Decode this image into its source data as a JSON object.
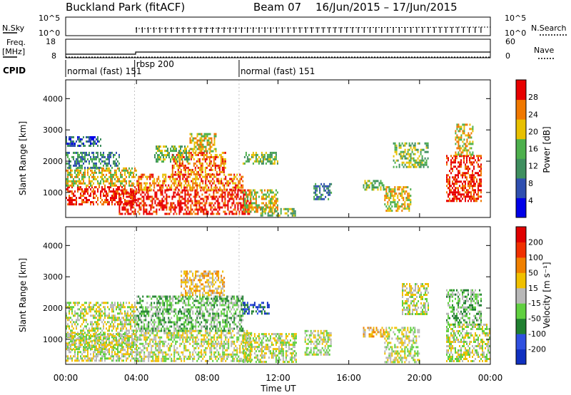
{
  "header": {
    "station": "Buckland Park (fitACF)",
    "beam": "Beam 07",
    "date_range": "16/Jun/2015 – 17/Jun/2015"
  },
  "panels": {
    "nsky_label": "N.Sky",
    "nsearch_label": "N.Search",
    "freq_label_1": "Freq.",
    "freq_label_2": "[MHz]",
    "nave_label": "Nave",
    "cpid_label": "CPID",
    "left_axis_top": "10^5",
    "left_axis_bottom": "10^0",
    "right_axis_top": "10^5",
    "right_axis_bottom": "10^0",
    "freq_top": "18",
    "freq_bottom": "8",
    "nave_top": "60",
    "nave_bottom": "0",
    "cpid_segments": [
      {
        "label": "normal (fast) 151",
        "start_hour": 0,
        "end_hour": 3.9
      },
      {
        "label": "rbsp 200",
        "start_hour": 3.9,
        "end_hour": 9.8
      },
      {
        "label": "normal (fast) 151",
        "start_hour": 9.8,
        "end_hour": 24
      }
    ]
  },
  "chart_data": [
    {
      "type": "heatmap",
      "ylabel": "Slant Range [km]",
      "yticks": [
        "1000",
        "2000",
        "3000",
        "4000"
      ],
      "ylim": [
        200,
        4600
      ],
      "xlim": [
        0,
        24
      ],
      "colorbar_label": "Power [dB]",
      "colorbar_ticks": [
        "4",
        "8",
        "12",
        "16",
        "20",
        "24",
        "28"
      ],
      "colorbar_colors": [
        "#0000e8",
        "#2f4fb0",
        "#3f8f5f",
        "#4db04d",
        "#e8c000",
        "#f07800",
        "#e80000"
      ],
      "echo_regions": [
        {
          "start_hour": 0.0,
          "end_hour": 4.0,
          "min_km": 650,
          "max_km": 1200,
          "level": 6
        },
        {
          "start_hour": 0.0,
          "end_hour": 4.0,
          "min_km": 1200,
          "max_km": 1800,
          "level": 4
        },
        {
          "start_hour": 0.0,
          "end_hour": 3.0,
          "min_km": 1800,
          "max_km": 2300,
          "level": 2
        },
        {
          "start_hour": 0.0,
          "end_hour": 2.0,
          "min_km": 2500,
          "max_km": 2800,
          "level": 1
        },
        {
          "start_hour": 3.0,
          "end_hour": 10.5,
          "min_km": 300,
          "max_km": 1100,
          "level": 6
        },
        {
          "start_hour": 4.0,
          "end_hour": 10.0,
          "min_km": 1100,
          "max_km": 1600,
          "level": 5
        },
        {
          "start_hour": 6.0,
          "end_hour": 9.0,
          "min_km": 1600,
          "max_km": 2300,
          "level": 5
        },
        {
          "start_hour": 7.0,
          "end_hour": 8.5,
          "min_km": 2300,
          "max_km": 2900,
          "level": 4
        },
        {
          "start_hour": 5.0,
          "end_hour": 7.0,
          "min_km": 2000,
          "max_km": 2500,
          "level": 3
        },
        {
          "start_hour": 10.0,
          "end_hour": 12.0,
          "min_km": 400,
          "max_km": 1100,
          "level": 4
        },
        {
          "start_hour": 10.0,
          "end_hour": 12.0,
          "min_km": 1900,
          "max_km": 2300,
          "level": 3
        },
        {
          "start_hour": 11.0,
          "end_hour": 13.0,
          "min_km": 250,
          "max_km": 500,
          "level": 3
        },
        {
          "start_hour": 14.0,
          "end_hour": 15.0,
          "min_km": 800,
          "max_km": 1300,
          "level": 2
        },
        {
          "start_hour": 16.8,
          "end_hour": 18.0,
          "min_km": 1100,
          "max_km": 1400,
          "level": 3
        },
        {
          "start_hour": 18.0,
          "end_hour": 19.5,
          "min_km": 400,
          "max_km": 1200,
          "level": 4
        },
        {
          "start_hour": 18.5,
          "end_hour": 20.5,
          "min_km": 1800,
          "max_km": 2600,
          "level": 3
        },
        {
          "start_hour": 21.5,
          "end_hour": 23.5,
          "min_km": 700,
          "max_km": 2200,
          "level": 6
        },
        {
          "start_hour": 22.0,
          "end_hour": 23.0,
          "min_km": 2200,
          "max_km": 3200,
          "level": 4
        }
      ]
    },
    {
      "type": "heatmap",
      "ylabel": "Slant Range [km]",
      "yticks": [
        "1000",
        "2000",
        "3000",
        "4000"
      ],
      "ylim": [
        200,
        4600
      ],
      "xlim": [
        0,
        24
      ],
      "xlabel": "Time UT",
      "xticks": [
        "00:00",
        "04:00",
        "08:00",
        "12:00",
        "16:00",
        "20:00",
        "00:00"
      ],
      "colorbar_label": "Velocity [m s⁻¹]",
      "colorbar_ticks": [
        "200",
        "100",
        "50",
        "15",
        "-15",
        "-50",
        "-100",
        "-200"
      ],
      "colorbar_colors": [
        "#1030c0",
        "#3050e0",
        "#208030",
        "#60d040",
        "#b8b8b8",
        "#f0c000",
        "#f08000",
        "#f03000",
        "#e00000"
      ],
      "echo_regions": [
        {
          "start_hour": 0.0,
          "end_hour": 4.0,
          "min_km": 300,
          "max_km": 2200,
          "level": 4
        },
        {
          "start_hour": 0.0,
          "end_hour": 4.0,
          "min_km": 700,
          "max_km": 1200,
          "level": 4
        },
        {
          "start_hour": 4.0,
          "end_hour": 10.5,
          "min_km": 300,
          "max_km": 1300,
          "level": 4
        },
        {
          "start_hour": 4.0,
          "end_hour": 10.0,
          "min_km": 1300,
          "max_km": 2400,
          "level": 3
        },
        {
          "start_hour": 6.5,
          "end_hour": 9.0,
          "min_km": 2400,
          "max_km": 3200,
          "level": 5
        },
        {
          "start_hour": 10.0,
          "end_hour": 11.5,
          "min_km": 1800,
          "max_km": 2200,
          "level": 1
        },
        {
          "start_hour": 10.0,
          "end_hour": 13.0,
          "min_km": 300,
          "max_km": 1200,
          "level": 4
        },
        {
          "start_hour": 13.5,
          "end_hour": 15.0,
          "min_km": 500,
          "max_km": 1300,
          "level": 4
        },
        {
          "start_hour": 16.8,
          "end_hour": 18.0,
          "min_km": 1100,
          "max_km": 1400,
          "level": 5
        },
        {
          "start_hour": 18.0,
          "end_hour": 20.0,
          "min_km": 300,
          "max_km": 1400,
          "level": 4
        },
        {
          "start_hour": 19.0,
          "end_hour": 20.5,
          "min_km": 1800,
          "max_km": 2800,
          "level": 4
        },
        {
          "start_hour": 21.5,
          "end_hour": 24.0,
          "min_km": 300,
          "max_km": 1500,
          "level": 4
        },
        {
          "start_hour": 21.5,
          "end_hour": 23.5,
          "min_km": 1500,
          "max_km": 2600,
          "level": 3
        }
      ]
    }
  ]
}
